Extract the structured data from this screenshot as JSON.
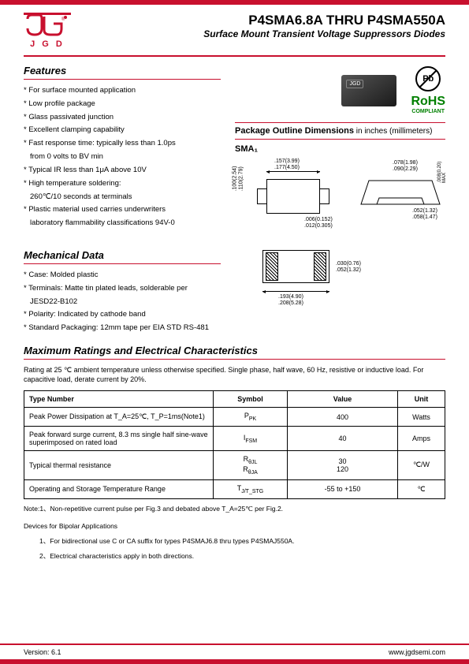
{
  "logo": {
    "letters": "J G D"
  },
  "header": {
    "title": "P4SMA6.8A THRU P4SMA550A",
    "subtitle": "Surface Mount Transient Voltage Suppressors Diodes"
  },
  "features": {
    "heading": "Features",
    "items": [
      "For surface mounted application",
      "Low profile package",
      "Glass passivated junction",
      "Excellent clamping capability",
      "Fast response time: typically less than 1.0ps",
      "from 0 volts to BV min",
      "Typical IR less than 1μA above 10V",
      "High temperature soldering:",
      "260℃/10 seconds at terminals",
      "Plastic material used carries underwriters",
      "laboratory flammability classifications 94V-0"
    ],
    "indent_indices": [
      5,
      8,
      10
    ]
  },
  "mechanical": {
    "heading": "Mechanical Data",
    "items": [
      "Case: Molded plastic",
      "Terminals: Matte tin plated leads, solderable per",
      "JESD22-B102",
      "Polarity: Indicated by cathode band",
      "Standard Packaging: 12mm tape per EIA STD RS-481"
    ],
    "indent_indices": [
      2
    ]
  },
  "badges": {
    "pb": "Pb",
    "rohs_main": "RoHS",
    "rohs_sub": "COMPLIANT"
  },
  "package": {
    "heading_bold": "Package Outline Dimensions",
    "heading_unit": " in inches (millimeters)",
    "label": "SMA₁",
    "dims": {
      "d1": ".157(3.99)",
      "d2": ".177(4.50)",
      "d3": ".100(2.54)",
      "d4": ".110(2.79)",
      "d5": ".006(0.152)",
      "d6": ".012(0.305)",
      "d7": ".193(4.90)",
      "d8": ".208(5.28)",
      "d9": ".030(0.76)",
      "d10": ".052(1.32)",
      "d11": ".078(1.98)",
      "d12": ".090(2.29)",
      "d13": ".008(0.20)",
      "d14": "MAX",
      "d15": ".052(1.32)",
      "d16": ".058(1.47)"
    }
  },
  "ratings": {
    "heading": "Maximum Ratings and Electrical Characteristics",
    "note": "Rating at 25 ℃ ambient temperature unless otherwise specified. Single phase, half wave, 60 Hz, resistive or inductive load. For capacitive load, derate current by 20%.",
    "columns": [
      "Type Number",
      "Symbol",
      "Value",
      "Unit"
    ],
    "rows": [
      {
        "type": "Peak Power Dissipation at T_A=25℃, T_P=1ms(Note1)",
        "symbol": "P_PK",
        "value": "400",
        "unit": "Watts"
      },
      {
        "type": "Peak forward surge current, 8.3 ms single half sine-wave superimposed on rated load",
        "symbol": "I_FSM",
        "value": "40",
        "unit": "Amps"
      },
      {
        "type": "Typical thermal resistance",
        "symbol": "R_θJL\nR_θJA",
        "value": "30\n120",
        "unit": "℃/W"
      },
      {
        "type": "Operating and Storage Temperature Range",
        "symbol": "T_J/T_STG",
        "value": "-55 to +150",
        "unit": "℃"
      }
    ]
  },
  "footnotes": {
    "note1": "Note:1、Non-repetitive current pulse per Fig.3 and debated above T_A=25℃ per Fig.2.",
    "bipolar_heading": "Devices for Bipolar Applications",
    "bipolar1": "1、For bidirectional use C or CA suffix for types P4SMAJ6.8 thru types P4SMAJ550A.",
    "bipolar2": "2、Electrical characteristics apply in both directions."
  },
  "footer": {
    "version": "Version: 6.1",
    "url": "www.jgdsemi.com"
  },
  "colors": {
    "brand": "#c8102e",
    "green": "#008000"
  }
}
